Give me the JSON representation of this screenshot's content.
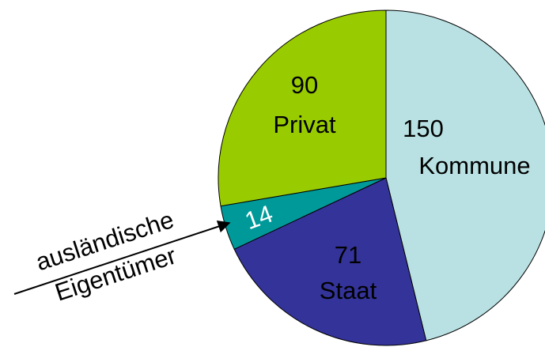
{
  "chart_data": {
    "type": "pie",
    "categories": [
      "Kommune",
      "Staat",
      "ausländische Eigentümer",
      "Privat"
    ],
    "values": [
      150,
      71,
      14,
      90
    ],
    "colors": [
      "#b9e1e3",
      "#333399",
      "#009999",
      "#99cc00"
    ]
  }
}
